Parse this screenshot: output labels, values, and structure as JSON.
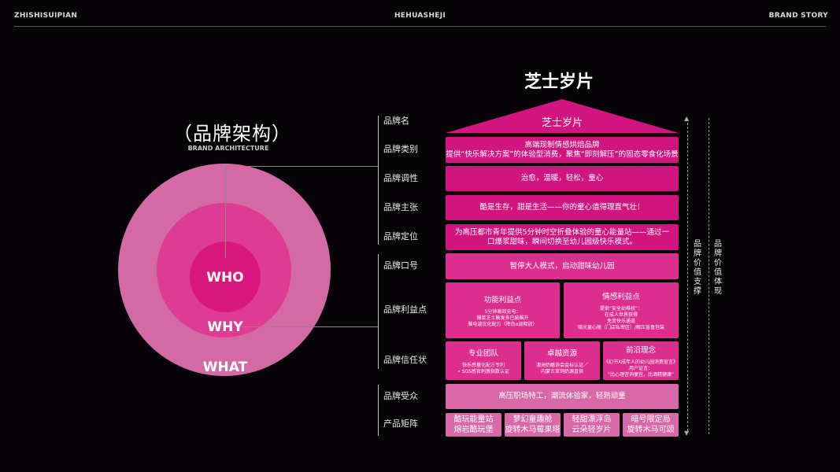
{
  "header": {
    "left": "ZHISHISUIPIAN",
    "center": "HEHUASHEJI",
    "right": "BRAND STORY"
  },
  "architecture": {
    "title": "（品牌架构）",
    "subtitle": "BRAND ARCHITECTURE",
    "who": "WHO",
    "why": "WHY",
    "what": "WHAT"
  },
  "pyramid": {
    "title": "芝士岁片",
    "side_left": "品牌价值支撑",
    "side_right": "品牌价值体现",
    "labels": {
      "name": "品牌名",
      "category": "品牌类别",
      "tone": "品牌调性",
      "claim": "品牌主张",
      "position": "品牌定位",
      "slogan": "品牌口号",
      "benefit": "品牌利益点",
      "trust": "品牌信任状",
      "audience": "品牌受众",
      "matrix": "产品矩阵"
    },
    "name_box": "芝士岁片",
    "category": [
      "高端现制情感烘焙品牌",
      "提供“快乐解决方案”的体验型消费，聚焦“即刻解压”的固态零食化场景"
    ],
    "tone": "治愈，温暖，轻松，童心",
    "claim": "酷是生存，甜是生活——你的童心值得理直气壮！",
    "position": [
      "为高压都市青年提供5分钟时空折叠体验的童心能量站——通过一",
      "口爆浆甜味，瞬间切换至幼儿园级快乐模式。"
    ],
    "slogan": "暂停大人模式，启动甜味幼儿园",
    "benefits": [
      {
        "title": "功能利益点",
        "lines": [
          "5分钟高效充电：",
          "爆浆芝士触发多巴胺飙升",
          "脑电波优化配方（降伪α波释放）"
        ]
      },
      {
        "title": "情感利益点",
        "lines": [
          "提供“安全幼稚权”：",
          "在成人世界获得",
          "免责快乐通道",
          "暗光童心舱（门店私密区）/解压盲盒包装"
        ]
      }
    ],
    "trust": [
      {
        "title": "专业团队",
        "lines": [
          "快乐感量化配方专利",
          "• SGS感官刺激指数认证"
        ]
      },
      {
        "title": "卓越资源",
        "lines": [
          "澳洲奶酪协会金标认证／",
          "内蒙古草饲奶源直供"
        ]
      },
      {
        "title": "前沿理念",
        "lines": [
          "《幻书X成年人的幼儿园消费宣言》",
          "用户证言：",
          "“比心理咨询便宜，比酒精健康”"
        ]
      }
    ],
    "audience": "高压职场特工，潮流体验家，轻熟顽童",
    "products": [
      [
        "酷玩能量站",
        "熔岩酷玩堡"
      ],
      [
        "梦幻童趣舱",
        "旋转木马莓果塔"
      ],
      [
        "轻甜漂浮岛",
        "云朵轻岁片"
      ],
      [
        "暗号限定局",
        "旋转木马可颂"
      ]
    ]
  },
  "colors": {
    "deep": "#d01580",
    "mid": "#dd2e8f",
    "light": "#d868a8"
  }
}
